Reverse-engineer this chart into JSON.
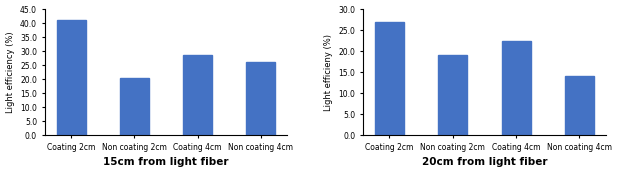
{
  "left": {
    "categories": [
      "Coating 2cm",
      "Non coating 2cm",
      "Coating 4cm",
      "Non coating 4cm"
    ],
    "values": [
      41.0,
      20.5,
      28.5,
      26.0
    ],
    "ylim": [
      0,
      45.0
    ],
    "yticks": [
      0.0,
      5.0,
      10.0,
      15.0,
      20.0,
      25.0,
      30.0,
      35.0,
      40.0,
      45.0
    ],
    "xlabel": "15cm from light fiber",
    "ylabel": "Light efficiency (%)"
  },
  "right": {
    "categories": [
      "Coating 2cm",
      "Non coating 2cm",
      "Coating 4cm",
      "Non coating 4cm"
    ],
    "values": [
      27.0,
      19.0,
      22.5,
      14.0
    ],
    "ylim": [
      0,
      30.0
    ],
    "yticks": [
      0.0,
      5.0,
      10.0,
      15.0,
      20.0,
      25.0,
      30.0
    ],
    "xlabel": "20cm from light fiber",
    "ylabel": "Light efficieny (%)"
  },
  "bar_color": "#4472C4",
  "bar_width": 0.55,
  "xlabel_fontsize": 7.5,
  "ylabel_fontsize": 6,
  "tick_fontsize": 5.5,
  "background_color": "#ffffff"
}
